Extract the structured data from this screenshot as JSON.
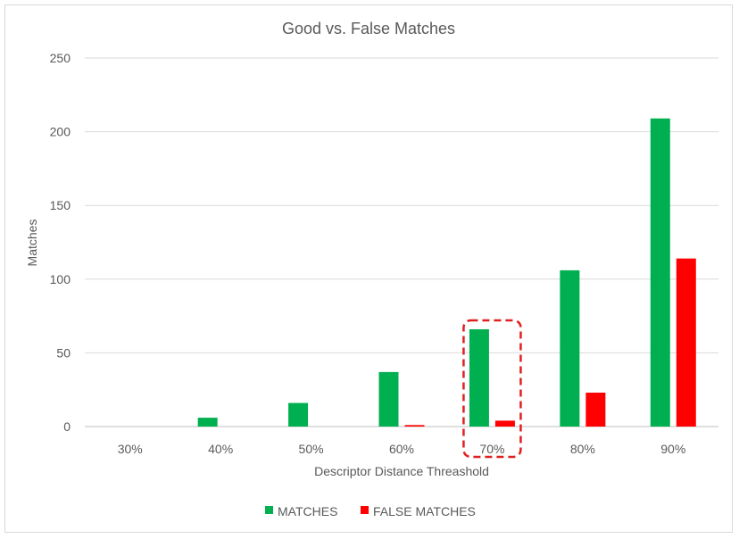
{
  "chart_data": {
    "type": "bar",
    "title": "Good vs. False Matches",
    "xlabel": "Descriptor Distance Threashold",
    "ylabel": "Matches",
    "categories": [
      "30%",
      "40%",
      "50%",
      "60%",
      "70%",
      "80%",
      "90%"
    ],
    "series": [
      {
        "name": "MATCHES",
        "color": "#00b050",
        "values": [
          0,
          6,
          16,
          37,
          66,
          106,
          209
        ]
      },
      {
        "name": "FALSE MATCHES",
        "color": "#ff0000",
        "values": [
          0,
          0,
          0,
          1,
          4,
          23,
          114
        ]
      }
    ],
    "ylim": [
      0,
      250
    ],
    "yticks": [
      0,
      50,
      100,
      150,
      200,
      250
    ],
    "grid": true,
    "legend": "bottom",
    "highlight_category": "70%",
    "highlight_color": "#e02020"
  }
}
